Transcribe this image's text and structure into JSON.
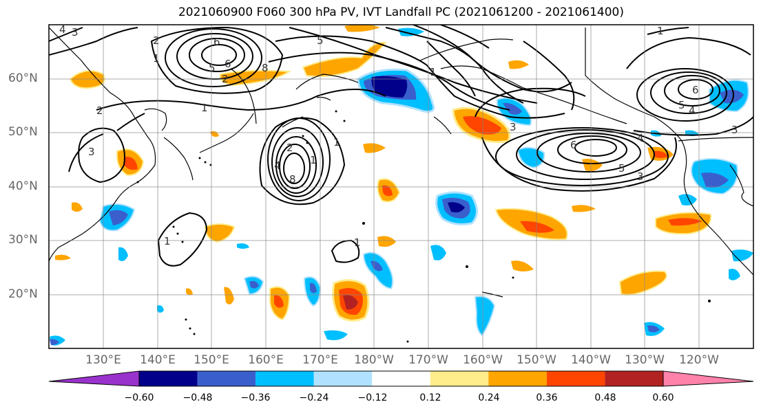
{
  "title": "2021060900 F060 300 hPa PV, IVT Landfall PC (2021061200 - 2021061400)",
  "lat_labels": [
    "60°N",
    "50°N",
    "40°N",
    "30°N",
    "20°N"
  ],
  "lon_labels": [
    "130°E",
    "140°E",
    "150°E",
    "160°E",
    "170°E",
    "180°W",
    "170°W",
    "160°W",
    "150°W",
    "140°W",
    "130°W",
    "120°W"
  ],
  "colorbar": {
    "ticks": [
      "−0.60",
      "−0.48",
      "−0.36",
      "−0.24",
      "−0.12",
      "0.12",
      "0.24",
      "0.36",
      "0.48",
      "0.60"
    ],
    "colors": [
      "#9932cc",
      "#00008b",
      "#3a5fcd",
      "#00bfff",
      "#b0e2ff",
      "#ffffff",
      "#ffec8b",
      "#ffa500",
      "#ff4500",
      "#b22222",
      "#ff82ab"
    ]
  },
  "contour_labels": [
    "4",
    "3",
    "2",
    "1",
    "6",
    "5",
    "6",
    "8",
    "2",
    "5",
    "1",
    "2",
    "3",
    "1",
    "2",
    "4",
    "1",
    "8",
    "1",
    "1",
    "1",
    "3",
    "6",
    "4",
    "5",
    "3",
    "1",
    "6",
    "5",
    "4",
    "3"
  ]
}
